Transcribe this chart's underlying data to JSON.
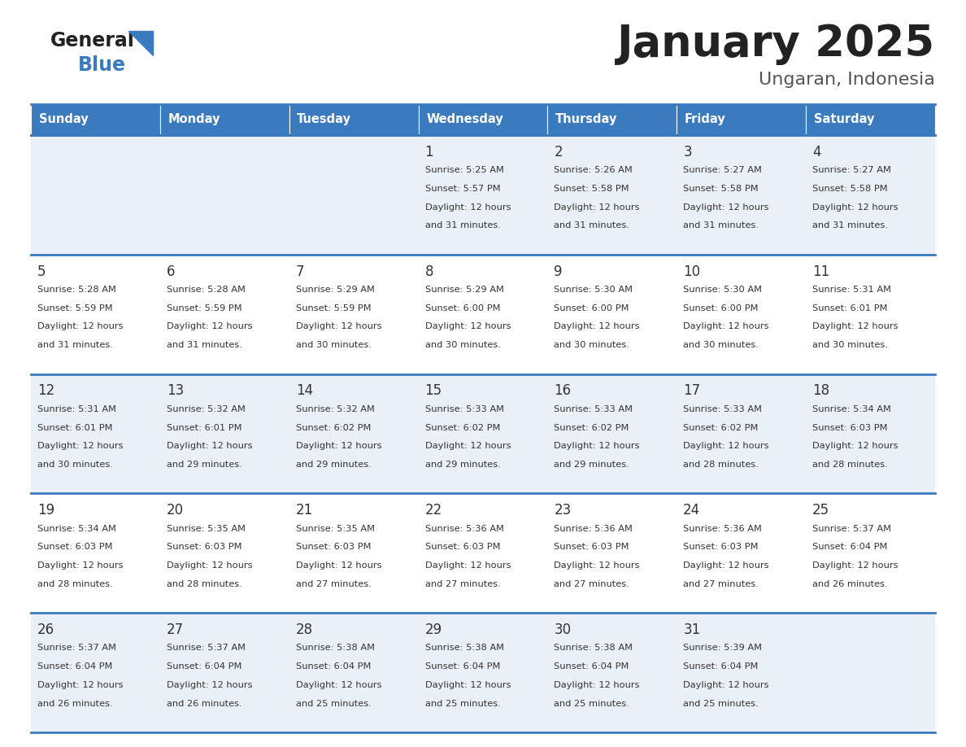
{
  "title": "January 2025",
  "subtitle": "Ungaran, Indonesia",
  "days_of_week": [
    "Sunday",
    "Monday",
    "Tuesday",
    "Wednesday",
    "Thursday",
    "Friday",
    "Saturday"
  ],
  "header_bg": "#3a7abf",
  "header_text": "#ffffff",
  "cell_bg_light": "#eaf0f7",
  "cell_bg_white": "#ffffff",
  "row_line_color": "#3a7abf",
  "text_color": "#333333",
  "logo_general_color": "#222222",
  "logo_blue_color": "#3a7abf",
  "logo_triangle_color": "#3a7abf",
  "title_color": "#222222",
  "subtitle_color": "#555555",
  "calendar": [
    [
      null,
      null,
      null,
      {
        "day": 1,
        "sunrise": "5:25 AM",
        "sunset": "5:57 PM",
        "daylight": "12 hours",
        "daylight2": "and 31 minutes."
      },
      {
        "day": 2,
        "sunrise": "5:26 AM",
        "sunset": "5:58 PM",
        "daylight": "12 hours",
        "daylight2": "and 31 minutes."
      },
      {
        "day": 3,
        "sunrise": "5:27 AM",
        "sunset": "5:58 PM",
        "daylight": "12 hours",
        "daylight2": "and 31 minutes."
      },
      {
        "day": 4,
        "sunrise": "5:27 AM",
        "sunset": "5:58 PM",
        "daylight": "12 hours",
        "daylight2": "and 31 minutes."
      }
    ],
    [
      {
        "day": 5,
        "sunrise": "5:28 AM",
        "sunset": "5:59 PM",
        "daylight": "12 hours",
        "daylight2": "and 31 minutes."
      },
      {
        "day": 6,
        "sunrise": "5:28 AM",
        "sunset": "5:59 PM",
        "daylight": "12 hours",
        "daylight2": "and 31 minutes."
      },
      {
        "day": 7,
        "sunrise": "5:29 AM",
        "sunset": "5:59 PM",
        "daylight": "12 hours",
        "daylight2": "and 30 minutes."
      },
      {
        "day": 8,
        "sunrise": "5:29 AM",
        "sunset": "6:00 PM",
        "daylight": "12 hours",
        "daylight2": "and 30 minutes."
      },
      {
        "day": 9,
        "sunrise": "5:30 AM",
        "sunset": "6:00 PM",
        "daylight": "12 hours",
        "daylight2": "and 30 minutes."
      },
      {
        "day": 10,
        "sunrise": "5:30 AM",
        "sunset": "6:00 PM",
        "daylight": "12 hours",
        "daylight2": "and 30 minutes."
      },
      {
        "day": 11,
        "sunrise": "5:31 AM",
        "sunset": "6:01 PM",
        "daylight": "12 hours",
        "daylight2": "and 30 minutes."
      }
    ],
    [
      {
        "day": 12,
        "sunrise": "5:31 AM",
        "sunset": "6:01 PM",
        "daylight": "12 hours",
        "daylight2": "and 30 minutes."
      },
      {
        "day": 13,
        "sunrise": "5:32 AM",
        "sunset": "6:01 PM",
        "daylight": "12 hours",
        "daylight2": "and 29 minutes."
      },
      {
        "day": 14,
        "sunrise": "5:32 AM",
        "sunset": "6:02 PM",
        "daylight": "12 hours",
        "daylight2": "and 29 minutes."
      },
      {
        "day": 15,
        "sunrise": "5:33 AM",
        "sunset": "6:02 PM",
        "daylight": "12 hours",
        "daylight2": "and 29 minutes."
      },
      {
        "day": 16,
        "sunrise": "5:33 AM",
        "sunset": "6:02 PM",
        "daylight": "12 hours",
        "daylight2": "and 29 minutes."
      },
      {
        "day": 17,
        "sunrise": "5:33 AM",
        "sunset": "6:02 PM",
        "daylight": "12 hours",
        "daylight2": "and 28 minutes."
      },
      {
        "day": 18,
        "sunrise": "5:34 AM",
        "sunset": "6:03 PM",
        "daylight": "12 hours",
        "daylight2": "and 28 minutes."
      }
    ],
    [
      {
        "day": 19,
        "sunrise": "5:34 AM",
        "sunset": "6:03 PM",
        "daylight": "12 hours",
        "daylight2": "and 28 minutes."
      },
      {
        "day": 20,
        "sunrise": "5:35 AM",
        "sunset": "6:03 PM",
        "daylight": "12 hours",
        "daylight2": "and 28 minutes."
      },
      {
        "day": 21,
        "sunrise": "5:35 AM",
        "sunset": "6:03 PM",
        "daylight": "12 hours",
        "daylight2": "and 27 minutes."
      },
      {
        "day": 22,
        "sunrise": "5:36 AM",
        "sunset": "6:03 PM",
        "daylight": "12 hours",
        "daylight2": "and 27 minutes."
      },
      {
        "day": 23,
        "sunrise": "5:36 AM",
        "sunset": "6:03 PM",
        "daylight": "12 hours",
        "daylight2": "and 27 minutes."
      },
      {
        "day": 24,
        "sunrise": "5:36 AM",
        "sunset": "6:03 PM",
        "daylight": "12 hours",
        "daylight2": "and 27 minutes."
      },
      {
        "day": 25,
        "sunrise": "5:37 AM",
        "sunset": "6:04 PM",
        "daylight": "12 hours",
        "daylight2": "and 26 minutes."
      }
    ],
    [
      {
        "day": 26,
        "sunrise": "5:37 AM",
        "sunset": "6:04 PM",
        "daylight": "12 hours",
        "daylight2": "and 26 minutes."
      },
      {
        "day": 27,
        "sunrise": "5:37 AM",
        "sunset": "6:04 PM",
        "daylight": "12 hours",
        "daylight2": "and 26 minutes."
      },
      {
        "day": 28,
        "sunrise": "5:38 AM",
        "sunset": "6:04 PM",
        "daylight": "12 hours",
        "daylight2": "and 25 minutes."
      },
      {
        "day": 29,
        "sunrise": "5:38 AM",
        "sunset": "6:04 PM",
        "daylight": "12 hours",
        "daylight2": "and 25 minutes."
      },
      {
        "day": 30,
        "sunrise": "5:38 AM",
        "sunset": "6:04 PM",
        "daylight": "12 hours",
        "daylight2": "and 25 minutes."
      },
      {
        "day": 31,
        "sunrise": "5:39 AM",
        "sunset": "6:04 PM",
        "daylight": "12 hours",
        "daylight2": "and 25 minutes."
      },
      null
    ]
  ]
}
